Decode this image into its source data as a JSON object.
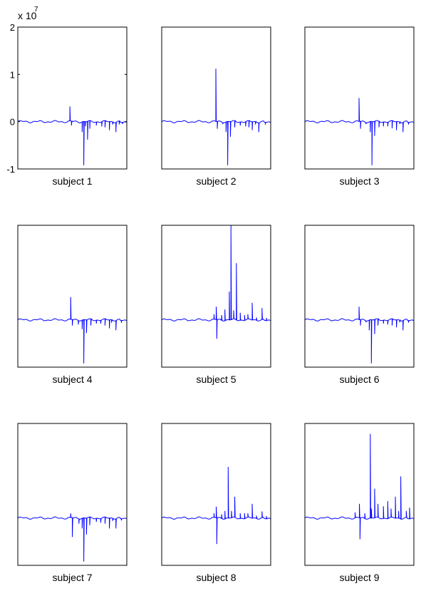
{
  "chart_data": {
    "type": "line",
    "line_color": "#0000ff",
    "axis_color": "#000000",
    "background": "#ffffff",
    "y_multiplier_label": "x 10",
    "y_multiplier_exponent": "7",
    "ylim": [
      -1,
      2
    ],
    "y_ticks": [
      2,
      1,
      0,
      -1
    ],
    "y_tick_labels": [
      "2",
      "1",
      "0",
      "-1"
    ],
    "x_ticks_visible": false,
    "grid": false,
    "panels": [
      {
        "label": "subject 1",
        "y_ticks_visible": true,
        "spikes": [
          [
            0.478,
            0.32
          ],
          [
            0.492,
            -0.08
          ],
          [
            0.59,
            -0.22
          ],
          [
            0.605,
            -0.92
          ],
          [
            0.62,
            -0.1
          ],
          [
            0.64,
            -0.38
          ],
          [
            0.66,
            -0.15
          ],
          [
            0.72,
            -0.08
          ],
          [
            0.77,
            -0.1
          ],
          [
            0.8,
            -0.12
          ],
          [
            0.84,
            -0.18
          ],
          [
            0.87,
            -0.06
          ],
          [
            0.9,
            -0.22
          ],
          [
            0.93,
            -0.06
          ],
          [
            0.96,
            -0.05
          ]
        ]
      },
      {
        "label": "subject 2",
        "y_ticks_visible": false,
        "spikes": [
          [
            0.497,
            1.12
          ],
          [
            0.51,
            -0.15
          ],
          [
            0.56,
            -0.05
          ],
          [
            0.59,
            -0.22
          ],
          [
            0.605,
            -0.92
          ],
          [
            0.63,
            -0.32
          ],
          [
            0.67,
            -0.12
          ],
          [
            0.72,
            -0.08
          ],
          [
            0.77,
            -0.1
          ],
          [
            0.8,
            -0.12
          ],
          [
            0.83,
            -0.18
          ],
          [
            0.86,
            -0.06
          ],
          [
            0.89,
            -0.22
          ],
          [
            0.95,
            -0.06
          ]
        ]
      },
      {
        "label": "subject 3",
        "y_ticks_visible": false,
        "spikes": [
          [
            0.497,
            0.5
          ],
          [
            0.51,
            -0.15
          ],
          [
            0.56,
            -0.05
          ],
          [
            0.6,
            -0.22
          ],
          [
            0.615,
            -0.92
          ],
          [
            0.64,
            -0.3
          ],
          [
            0.68,
            -0.12
          ],
          [
            0.72,
            -0.1
          ],
          [
            0.76,
            -0.1
          ],
          [
            0.8,
            -0.14
          ],
          [
            0.84,
            -0.18
          ],
          [
            0.87,
            -0.05
          ],
          [
            0.9,
            -0.22
          ],
          [
            0.95,
            -0.06
          ]
        ]
      },
      {
        "label": "subject 4",
        "y_ticks_visible": false,
        "spikes": [
          [
            0.485,
            0.48
          ],
          [
            0.5,
            -0.12
          ],
          [
            0.555,
            -0.1
          ],
          [
            0.59,
            -0.2
          ],
          [
            0.605,
            -0.92
          ],
          [
            0.63,
            -0.28
          ],
          [
            0.67,
            -0.12
          ],
          [
            0.72,
            -0.08
          ],
          [
            0.76,
            -0.08
          ],
          [
            0.8,
            -0.12
          ],
          [
            0.84,
            -0.18
          ],
          [
            0.86,
            -0.06
          ],
          [
            0.9,
            -0.22
          ],
          [
            0.95,
            -0.06
          ]
        ]
      },
      {
        "label": "subject 5",
        "y_ticks_visible": false,
        "spikes": [
          [
            0.48,
            0.12
          ],
          [
            0.5,
            0.28
          ],
          [
            0.505,
            -0.4
          ],
          [
            0.55,
            0.1
          ],
          [
            0.58,
            0.22
          ],
          [
            0.62,
            0.6
          ],
          [
            0.635,
            2.0
          ],
          [
            0.66,
            0.2
          ],
          [
            0.685,
            1.2
          ],
          [
            0.72,
            0.15
          ],
          [
            0.76,
            0.1
          ],
          [
            0.79,
            0.12
          ],
          [
            0.83,
            0.36
          ],
          [
            0.87,
            0.05
          ],
          [
            0.92,
            0.25
          ],
          [
            0.96,
            0.04
          ]
        ]
      },
      {
        "label": "subject 6",
        "y_ticks_visible": false,
        "spikes": [
          [
            0.497,
            0.28
          ],
          [
            0.51,
            -0.12
          ],
          [
            0.56,
            -0.05
          ],
          [
            0.59,
            -0.22
          ],
          [
            0.61,
            -0.92
          ],
          [
            0.64,
            -0.3
          ],
          [
            0.67,
            -0.12
          ],
          [
            0.72,
            -0.08
          ],
          [
            0.76,
            -0.1
          ],
          [
            0.8,
            -0.12
          ],
          [
            0.84,
            -0.16
          ],
          [
            0.87,
            -0.05
          ],
          [
            0.9,
            -0.22
          ],
          [
            0.95,
            -0.06
          ]
        ]
      },
      {
        "label": "subject 7",
        "y_ticks_visible": false,
        "spikes": [
          [
            0.485,
            0.1
          ],
          [
            0.5,
            -0.4
          ],
          [
            0.56,
            -0.12
          ],
          [
            0.59,
            -0.22
          ],
          [
            0.605,
            -0.92
          ],
          [
            0.63,
            -0.35
          ],
          [
            0.66,
            -0.15
          ],
          [
            0.72,
            -0.08
          ],
          [
            0.76,
            -0.1
          ],
          [
            0.8,
            -0.12
          ],
          [
            0.84,
            -0.22
          ],
          [
            0.87,
            -0.06
          ],
          [
            0.9,
            -0.22
          ],
          [
            0.95,
            -0.05
          ]
        ]
      },
      {
        "label": "subject 8",
        "y_ticks_visible": false,
        "spikes": [
          [
            0.48,
            0.1
          ],
          [
            0.5,
            0.24
          ],
          [
            0.505,
            -0.55
          ],
          [
            0.55,
            0.08
          ],
          [
            0.58,
            0.15
          ],
          [
            0.61,
            1.08
          ],
          [
            0.64,
            0.15
          ],
          [
            0.67,
            0.45
          ],
          [
            0.72,
            0.1
          ],
          [
            0.76,
            0.1
          ],
          [
            0.79,
            0.1
          ],
          [
            0.83,
            0.3
          ],
          [
            0.87,
            0.05
          ],
          [
            0.92,
            0.14
          ],
          [
            0.96,
            0.04
          ]
        ]
      },
      {
        "label": "subject 9",
        "y_ticks_visible": false,
        "spikes": [
          [
            0.46,
            0.12
          ],
          [
            0.5,
            0.3
          ],
          [
            0.505,
            -0.45
          ],
          [
            0.55,
            0.1
          ],
          [
            0.6,
            1.78
          ],
          [
            0.61,
            0.2
          ],
          [
            0.64,
            0.62
          ],
          [
            0.67,
            0.3
          ],
          [
            0.72,
            0.25
          ],
          [
            0.76,
            0.36
          ],
          [
            0.79,
            0.2
          ],
          [
            0.83,
            0.45
          ],
          [
            0.86,
            0.15
          ],
          [
            0.88,
            0.88
          ],
          [
            0.93,
            0.15
          ],
          [
            0.96,
            0.22
          ]
        ]
      }
    ]
  }
}
